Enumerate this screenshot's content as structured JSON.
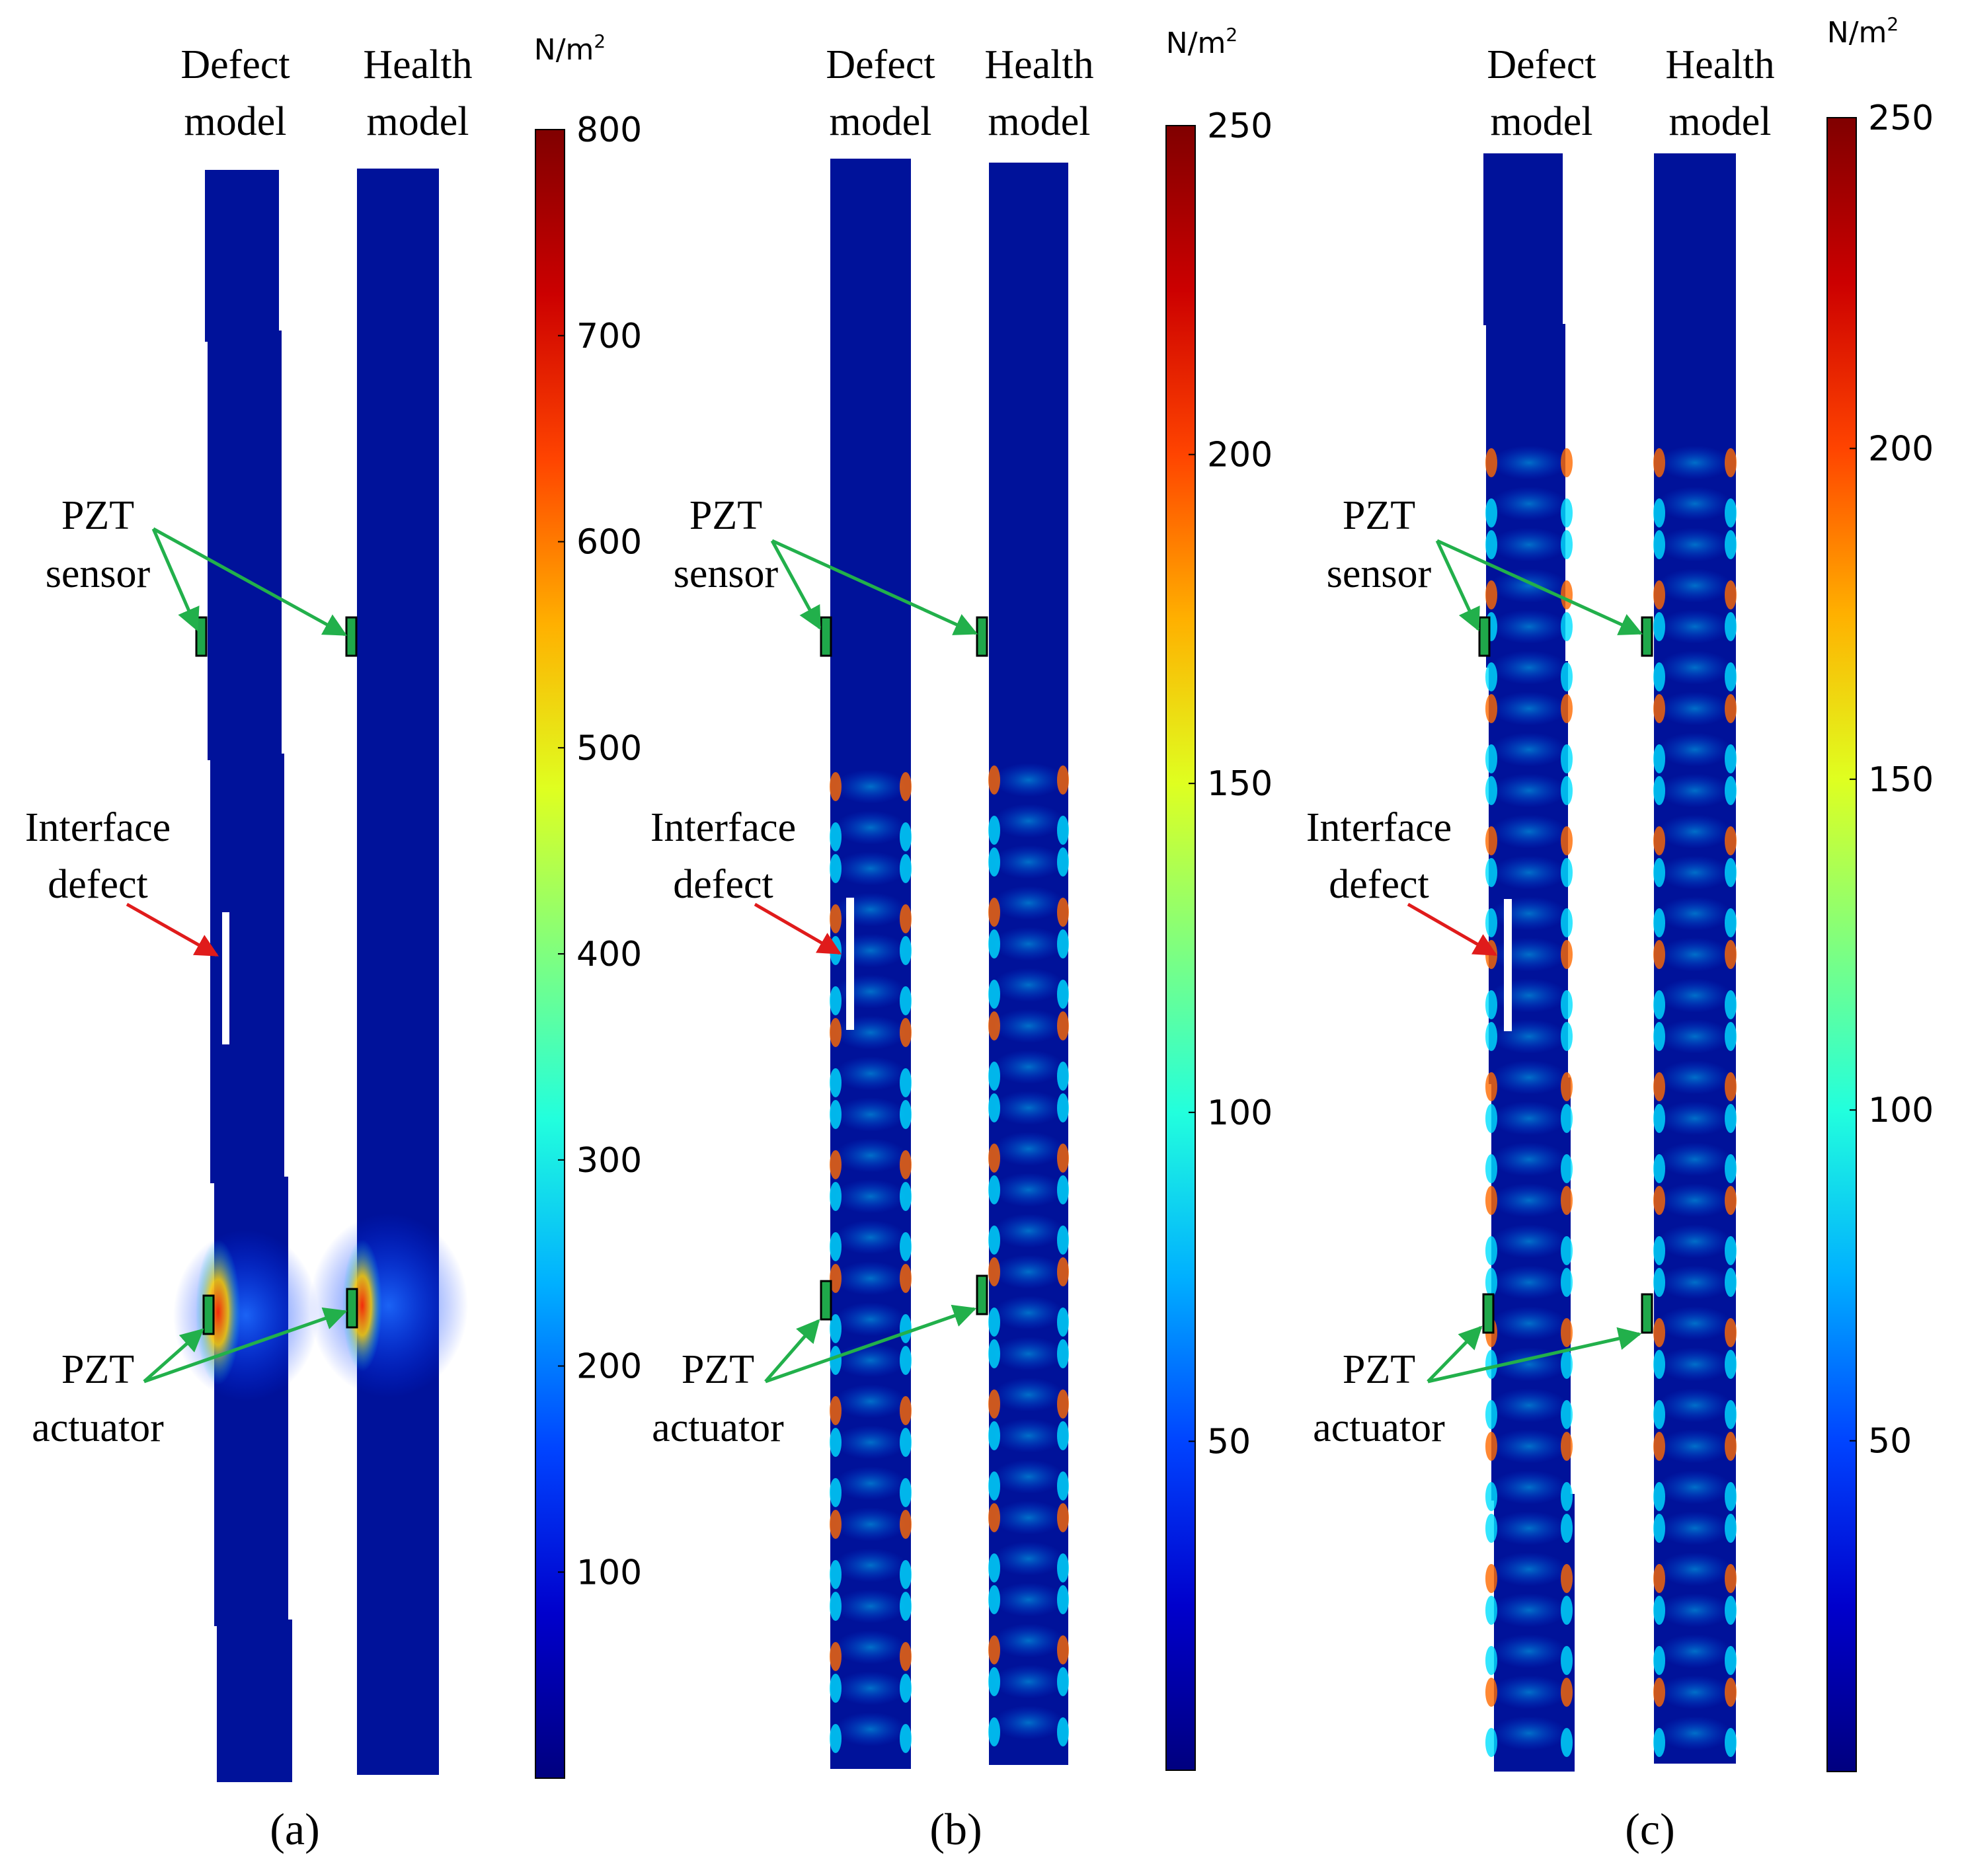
{
  "colors": {
    "background": "#ffffff",
    "specimen_base": "#00129a",
    "sensor_marker": "#1fa84a",
    "sensor_arrow": "#22b04b",
    "defect_arrow": "#e01b1b",
    "defect_gap": "#ffffff"
  },
  "colormap": [
    "#00007f",
    "#0000cc",
    "#0044ff",
    "#00b0ff",
    "#22ffdd",
    "#7fff7f",
    "#dfff20",
    "#ffb000",
    "#ff4400",
    "#cc0000",
    "#800000"
  ],
  "panels": [
    {
      "id": "a",
      "caption": "(a)",
      "model_labels": {
        "defect": [
          "Defect",
          "model"
        ],
        "health": [
          "Health",
          "model"
        ]
      },
      "annotations": {
        "sensor": [
          "PZT",
          "sensor"
        ],
        "defect": [
          "Interface",
          "defect"
        ],
        "actuator": [
          "PZT",
          "actuator"
        ]
      },
      "colorbar": {
        "unit": "N/m",
        "unit_sup": "2",
        "min": 0,
        "max": 800,
        "ticks": [
          "800",
          "700",
          "600",
          "500",
          "400",
          "300",
          "200",
          "100"
        ],
        "tick_values": [
          800,
          700,
          600,
          500,
          400,
          300,
          200,
          100
        ]
      },
      "stress_pattern": "actuator-local"
    },
    {
      "id": "b",
      "caption": "(b)",
      "model_labels": {
        "defect": [
          "Defect",
          "model"
        ],
        "health": [
          "Health",
          "model"
        ]
      },
      "annotations": {
        "sensor": [
          "PZT",
          "sensor"
        ],
        "defect": [
          "Interface",
          "defect"
        ],
        "actuator": [
          "PZT",
          "actuator"
        ]
      },
      "colorbar": {
        "unit": "N/m",
        "unit_sup": "2",
        "min": 0,
        "max": 250,
        "ticks": [
          "250",
          "200",
          "150",
          "100",
          "50"
        ],
        "tick_values": [
          250,
          200,
          150,
          100,
          50
        ]
      },
      "stress_pattern": "lower-propagation"
    },
    {
      "id": "c",
      "caption": "(c)",
      "model_labels": {
        "defect": [
          "Defect",
          "model"
        ],
        "health": [
          "Health",
          "model"
        ]
      },
      "annotations": {
        "sensor": [
          "PZT",
          "sensor"
        ],
        "defect": [
          "Interface",
          "defect"
        ],
        "actuator": [
          "PZT",
          "actuator"
        ]
      },
      "colorbar": {
        "unit": "N/m",
        "unit_sup": "2",
        "min": 0,
        "max": 250,
        "ticks": [
          "250",
          "200",
          "150",
          "100",
          "50"
        ],
        "tick_values": [
          250,
          200,
          150,
          100,
          50
        ]
      },
      "stress_pattern": "full-propagation"
    }
  ]
}
